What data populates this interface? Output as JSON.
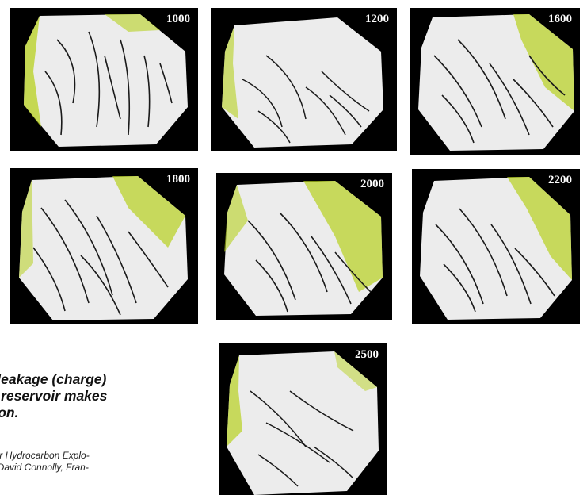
{
  "panels": [
    {
      "label": "1000"
    },
    {
      "label": "1200"
    },
    {
      "label": "1600"
    },
    {
      "label": "1800"
    },
    {
      "label": "2000"
    },
    {
      "label": "2200"
    },
    {
      "label": "2500"
    }
  ],
  "caption": {
    "line1": "ult leakage (charge)",
    "line2": "the reservoir makes",
    "line3": "arbon."
  },
  "reference": {
    "line1": "ntier Hydrocarbon Explo-",
    "line2": "m. David Connolly, Fran-"
  },
  "colors": {
    "background": "#000000",
    "slice": "#ececec",
    "fault": "#1a1a1a",
    "leak": "#b8d21f"
  }
}
